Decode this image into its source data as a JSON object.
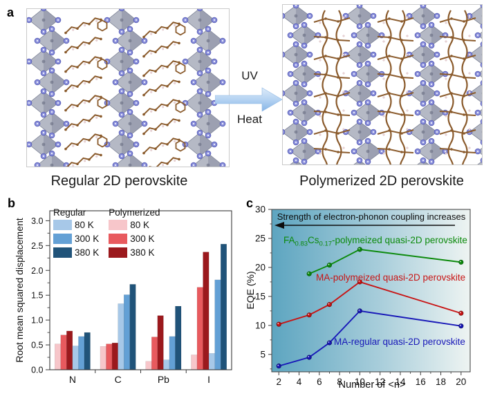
{
  "figure": {
    "panel_a_letter": "a",
    "panel_b_letter": "b",
    "panel_c_letter": "c",
    "regular_caption": "Regular 2D perovskite",
    "polymerized_caption": "Polymerized 2D perovskite",
    "uv_label": "UV",
    "heat_label": "Heat"
  },
  "chart_data": [
    {
      "type": "bar",
      "panel": "b",
      "ylabel": "Root mean squared displacement",
      "xlabel": "",
      "categories": [
        "N",
        "C",
        "Pb",
        "I"
      ],
      "ylim": [
        0,
        3.2
      ],
      "yticks": [
        0.0,
        0.5,
        1.0,
        1.5,
        2.0,
        2.5,
        3.0
      ],
      "grid": false,
      "legend_position": "top-left",
      "legend": {
        "columns": [
          {
            "title": "Regular",
            "items": [
              {
                "label": "80 K",
                "color": "#a7c8e8"
              },
              {
                "label": "300 K",
                "color": "#63a0d5"
              },
              {
                "label": "380 K",
                "color": "#205379"
              }
            ]
          },
          {
            "title": "Polymerized",
            "items": [
              {
                "label": "80 K",
                "color": "#f7c6ca"
              },
              {
                "label": "300 K",
                "color": "#e85a5e"
              },
              {
                "label": "380 K",
                "color": "#9b191d"
              }
            ]
          }
        ]
      },
      "series": [
        {
          "name": "Polymerized 80 K",
          "color": "#f7c6ca",
          "values": [
            0.52,
            0.47,
            0.17,
            0.3
          ]
        },
        {
          "name": "Polymerized 300 K",
          "color": "#e85a5e",
          "values": [
            0.7,
            0.52,
            0.66,
            1.66
          ]
        },
        {
          "name": "Polymerized 380 K",
          "color": "#9b191d",
          "values": [
            0.78,
            0.54,
            1.09,
            2.37
          ]
        },
        {
          "name": "Regular 80 K",
          "color": "#a7c8e8",
          "values": [
            0.48,
            1.33,
            0.2,
            0.33
          ]
        },
        {
          "name": "Regular 300 K",
          "color": "#63a0d5",
          "values": [
            0.67,
            1.51,
            0.67,
            1.81
          ]
        },
        {
          "name": "Regular 380 K",
          "color": "#205379",
          "values": [
            0.75,
            1.72,
            1.28,
            2.53
          ]
        }
      ]
    },
    {
      "type": "line",
      "panel": "c",
      "xlabel": "Number of <n>",
      "ylabel": "EQE (%)",
      "xlim": [
        1.3,
        20.9
      ],
      "ylim": [
        2,
        30
      ],
      "xticks": [
        2,
        4,
        6,
        8,
        10,
        12,
        14,
        16,
        18,
        20
      ],
      "yticks": [
        5,
        10,
        15,
        20,
        25,
        30
      ],
      "grid": false,
      "background_gradient": [
        "#5da5c0",
        "#a9cedb",
        "#eef4f2"
      ],
      "annotation": "Strength of electron-phonon coupling increases",
      "labels": {
        "green_parts": [
          "FA",
          "0.83",
          "Cs",
          "0.17",
          "-polymeized quasi-2D perovskite"
        ],
        "red": "MA-polymeized quasi-2D perovskite",
        "blue": "MA-regular quasi-2D perovskite"
      },
      "series": [
        {
          "name": "FA0.83Cs0.17-polymeized quasi-2D perovskite",
          "color": "#0c8a0c",
          "edge": "#065f0b",
          "x": [
            5,
            7,
            10,
            20
          ],
          "y": [
            18.9,
            20.4,
            23.1,
            20.9
          ]
        },
        {
          "name": "MA-polymeized quasi-2D perovskite",
          "color": "#c81414",
          "edge": "#7c0d0d",
          "x": [
            2,
            5,
            7,
            10,
            20
          ],
          "y": [
            10.2,
            11.8,
            13.6,
            17.5,
            12.1
          ]
        },
        {
          "name": "MA-regular quasi-2D perovskite",
          "color": "#1818b8",
          "edge": "#0d0d72",
          "x": [
            2,
            5,
            7,
            10,
            20
          ],
          "y": [
            3.0,
            4.5,
            7.0,
            12.5,
            9.9
          ]
        }
      ]
    }
  ]
}
